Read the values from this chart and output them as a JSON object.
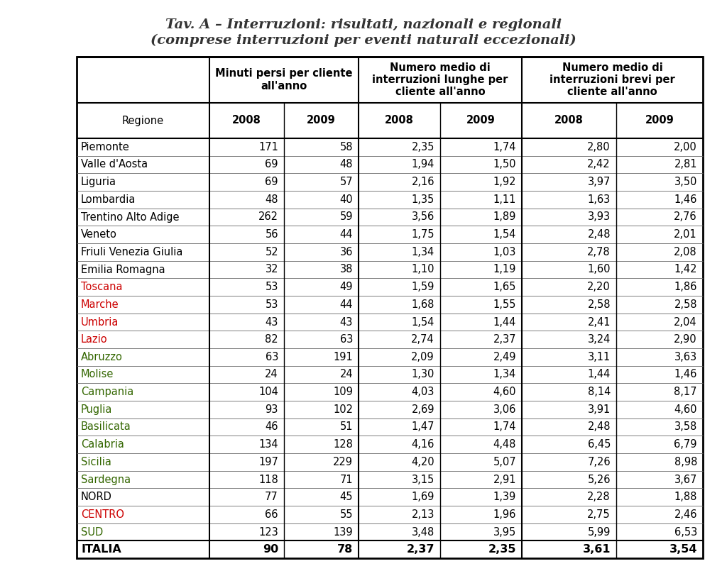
{
  "title_line1": "Tav. A – Interruzioni: risultati, nazionali e regionali",
  "title_line2": "(comprese interruzioni per eventi naturali eccezionali)",
  "col_headers_top": [
    "Minuti persi per cliente\nall'anno",
    "Numero medio di\ninterruzioni lunghe per\ncliente all'anno",
    "Numero medio di\ninterruzioni brevi per\ncliente all'anno"
  ],
  "col_headers_sub": [
    "Regione",
    "2008",
    "2009",
    "2008",
    "2009",
    "2008",
    "2009"
  ],
  "rows": [
    [
      "Piemonte",
      "171",
      "58",
      "2,35",
      "1,74",
      "2,80",
      "2,00"
    ],
    [
      "Valle d'Aosta",
      "69",
      "48",
      "1,94",
      "1,50",
      "2,42",
      "2,81"
    ],
    [
      "Liguria",
      "69",
      "57",
      "2,16",
      "1,92",
      "3,97",
      "3,50"
    ],
    [
      "Lombardia",
      "48",
      "40",
      "1,35",
      "1,11",
      "1,63",
      "1,46"
    ],
    [
      "Trentino Alto Adige",
      "262",
      "59",
      "3,56",
      "1,89",
      "3,93",
      "2,76"
    ],
    [
      "Veneto",
      "56",
      "44",
      "1,75",
      "1,54",
      "2,48",
      "2,01"
    ],
    [
      "Friuli Venezia Giulia",
      "52",
      "36",
      "1,34",
      "1,03",
      "2,78",
      "2,08"
    ],
    [
      "Emilia Romagna",
      "32",
      "38",
      "1,10",
      "1,19",
      "1,60",
      "1,42"
    ],
    [
      "Toscana",
      "53",
      "49",
      "1,59",
      "1,65",
      "2,20",
      "1,86"
    ],
    [
      "Marche",
      "53",
      "44",
      "1,68",
      "1,55",
      "2,58",
      "2,58"
    ],
    [
      "Umbria",
      "43",
      "43",
      "1,54",
      "1,44",
      "2,41",
      "2,04"
    ],
    [
      "Lazio",
      "82",
      "63",
      "2,74",
      "2,37",
      "3,24",
      "2,90"
    ],
    [
      "Abruzzo",
      "63",
      "191",
      "2,09",
      "2,49",
      "3,11",
      "3,63"
    ],
    [
      "Molise",
      "24",
      "24",
      "1,30",
      "1,34",
      "1,44",
      "1,46"
    ],
    [
      "Campania",
      "104",
      "109",
      "4,03",
      "4,60",
      "8,14",
      "8,17"
    ],
    [
      "Puglia",
      "93",
      "102",
      "2,69",
      "3,06",
      "3,91",
      "4,60"
    ],
    [
      "Basilicata",
      "46",
      "51",
      "1,47",
      "1,74",
      "2,48",
      "3,58"
    ],
    [
      "Calabria",
      "134",
      "128",
      "4,16",
      "4,48",
      "6,45",
      "6,79"
    ],
    [
      "Sicilia",
      "197",
      "229",
      "4,20",
      "5,07",
      "7,26",
      "8,98"
    ],
    [
      "Sardegna",
      "118",
      "71",
      "3,15",
      "2,91",
      "5,26",
      "3,67"
    ],
    [
      "NORD",
      "77",
      "45",
      "1,69",
      "1,39",
      "2,28",
      "1,88"
    ],
    [
      "CENTRO",
      "66",
      "55",
      "2,13",
      "1,96",
      "2,75",
      "2,46"
    ],
    [
      "SUD",
      "123",
      "139",
      "3,48",
      "3,95",
      "5,99",
      "6,53"
    ]
  ],
  "footer_row": [
    "ITALIA",
    "90",
    "78",
    "2,37",
    "2,35",
    "3,61",
    "3,54"
  ],
  "row_name_colors": {
    "Toscana": "#cc0000",
    "Marche": "#cc0000",
    "Umbria": "#cc0000",
    "Lazio": "#cc0000",
    "Abruzzo": "#336600",
    "Molise": "#336600",
    "Campania": "#336600",
    "Puglia": "#336600",
    "Basilicata": "#336600",
    "Calabria": "#336600",
    "Sicilia": "#336600",
    "Sardegna": "#336600",
    "CENTRO": "#cc0000",
    "SUD": "#336600"
  },
  "default_color": "#000000",
  "bg_color": "#ffffff"
}
